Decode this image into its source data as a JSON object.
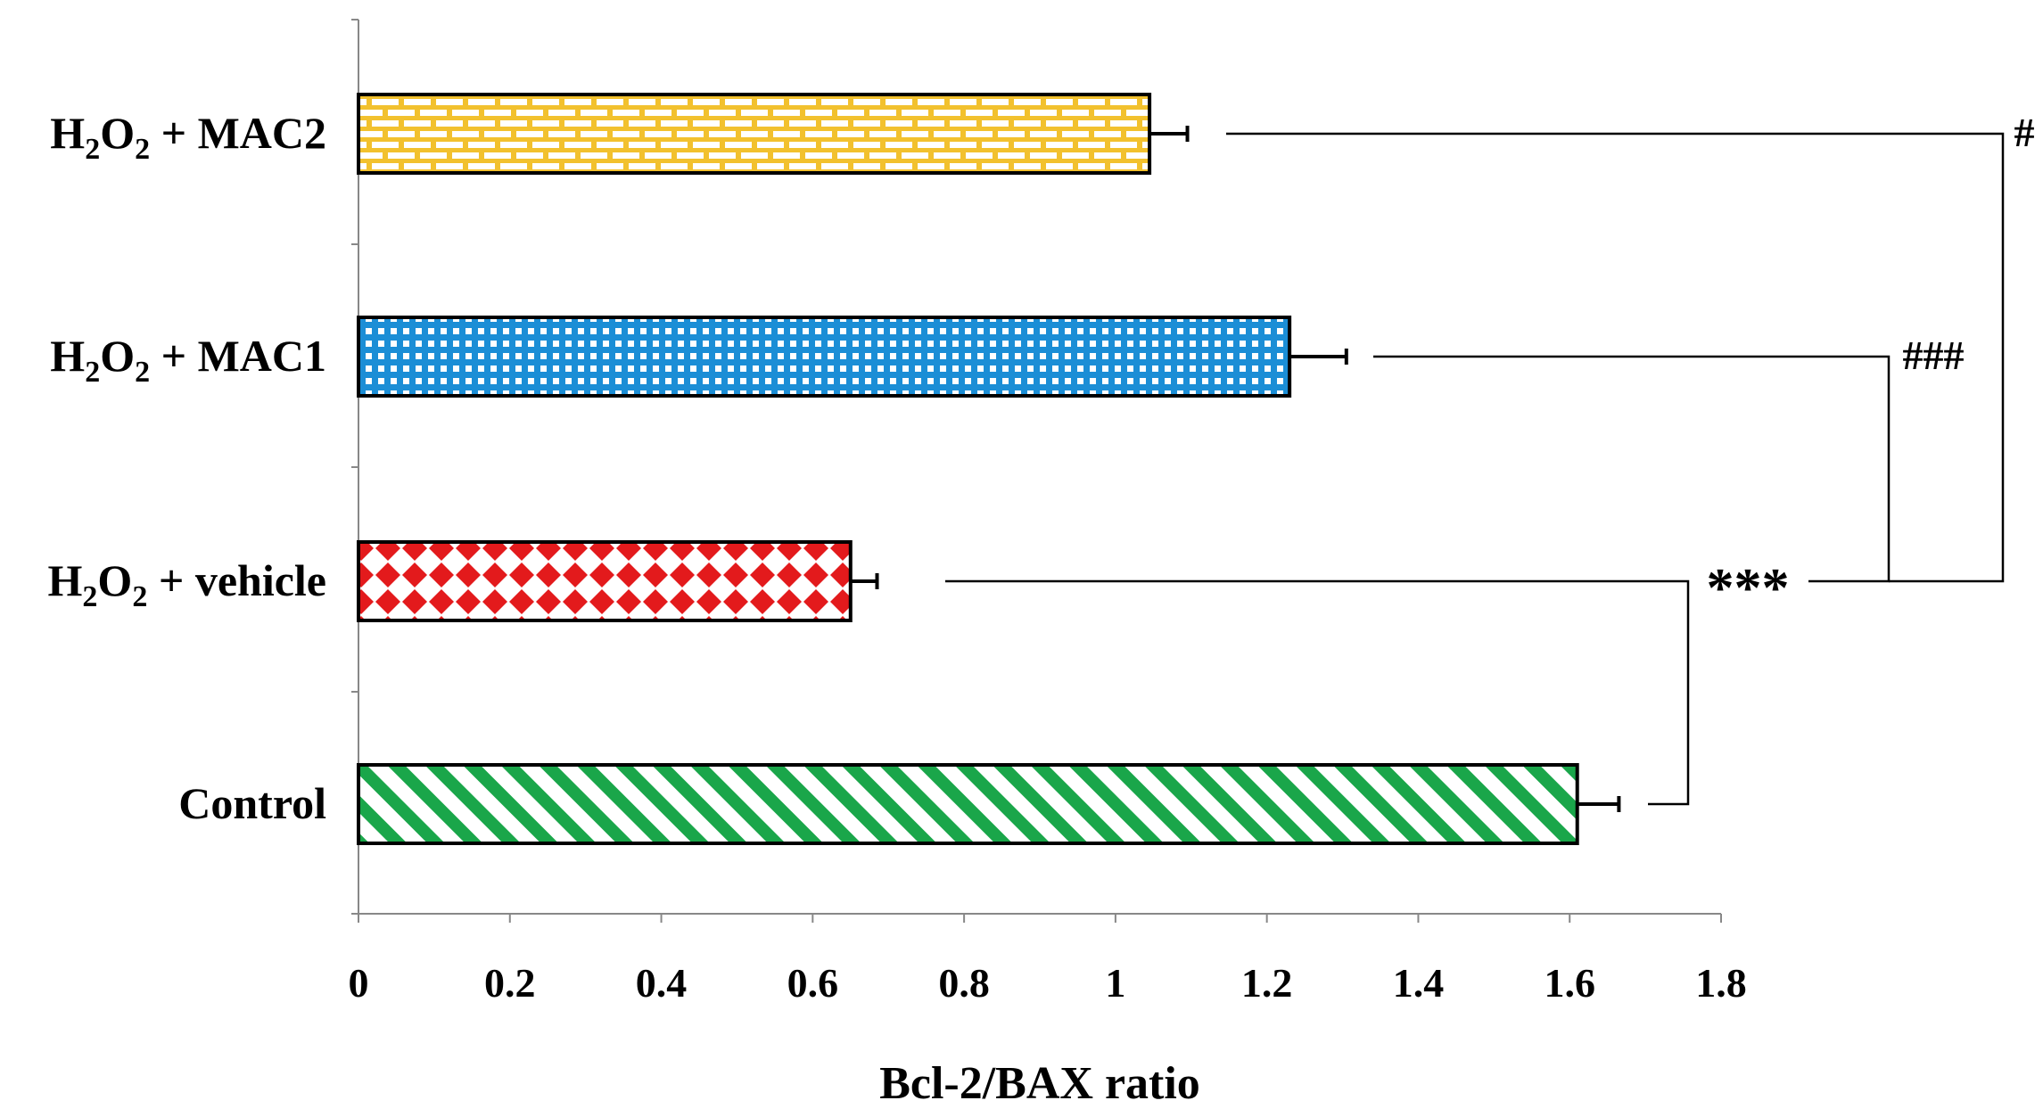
{
  "chart_data": {
    "type": "bar",
    "orientation": "horizontal",
    "title": "",
    "xlabel": "Bcl-2/BAX ratio",
    "ylabel": "",
    "xlim": [
      0,
      1.8
    ],
    "xticks": [
      "0",
      "0.2",
      "0.4",
      "0.6",
      "0.8",
      "1",
      "1.2",
      "1.4",
      "1.6",
      "1.8"
    ],
    "grid": false,
    "categories": [
      {
        "id": "control",
        "label": "Control"
      },
      {
        "id": "h2o2-vehicle",
        "label": "H2O2 + vehicle",
        "base": "H",
        "sub1": "2",
        "mid": "O",
        "sub2": "2",
        "rest": " + vehicle"
      },
      {
        "id": "h2o2-mac1",
        "label": "H2O2 + MAC1",
        "base": "H",
        "sub1": "2",
        "mid": "O",
        "sub2": "2",
        "rest": " + MAC1"
      },
      {
        "id": "h2o2-mac2",
        "label": "H2O2 + MAC2",
        "base": "H",
        "sub1": "2",
        "mid": "O",
        "sub2": "2",
        "rest": " + MAC2"
      }
    ],
    "values": [
      1.61,
      0.65,
      1.23,
      1.045
    ],
    "errors": [
      0.055,
      0.035,
      0.075,
      0.05
    ],
    "patterns": [
      "green-diagonal-stripes",
      "red-diamonds",
      "blue-grid",
      "yellow-brick"
    ],
    "colors": {
      "control": "#1aa64a",
      "vehicle": "#e31a1c",
      "mac1": "#1b8ed6",
      "mac2": "#f2c12e"
    },
    "significance": [
      {
        "compare": [
          "control",
          "h2o2-vehicle"
        ],
        "label": "***"
      },
      {
        "compare": [
          "h2o2-vehicle",
          "h2o2-mac1"
        ],
        "label": "###"
      },
      {
        "compare": [
          "h2o2-vehicle",
          "h2o2-mac2"
        ],
        "label": "#"
      }
    ]
  }
}
